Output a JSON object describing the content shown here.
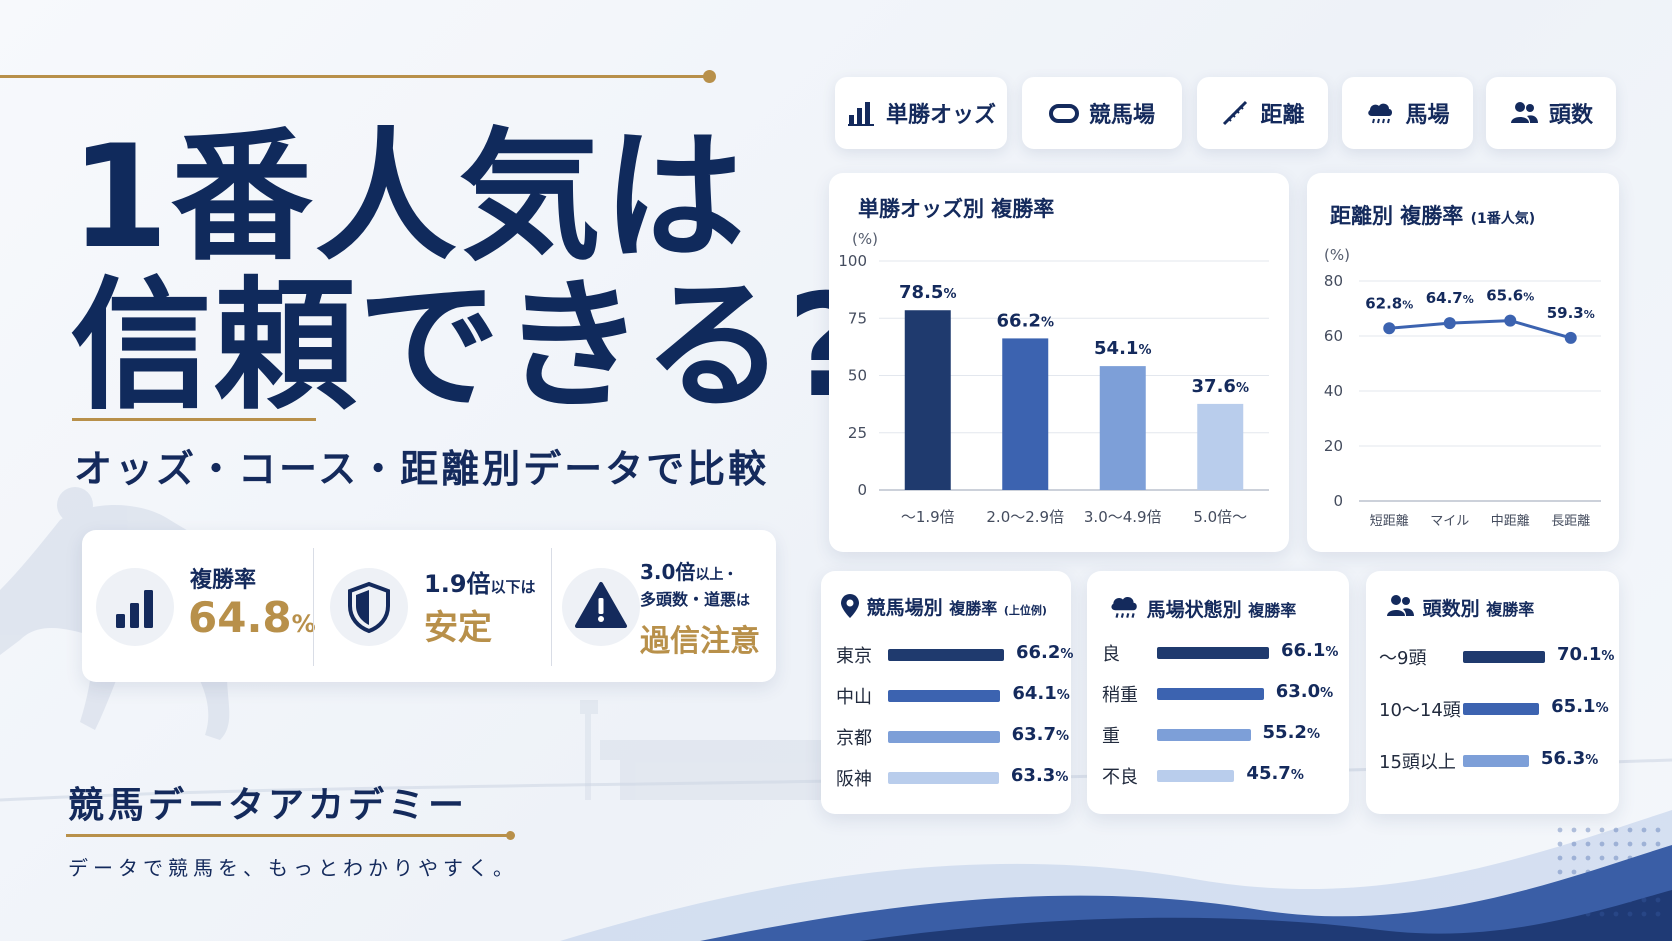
{
  "headline": {
    "line1": "1番人気は",
    "line2": "信頼できる?"
  },
  "subheadline": "オッズ・コース・距離別データで比較",
  "stats": [
    {
      "label": "複勝率",
      "value": "64.8",
      "unit": "%",
      "icon": "bar-chart-icon"
    },
    {
      "label_main": "1.9倍",
      "label_small": "以下は",
      "value": "安定",
      "icon": "shield-icon"
    },
    {
      "label_main": "3.0倍",
      "label_small": "以上・",
      "label2_main": "多頭数・道悪",
      "label2_small": "は",
      "value": "過信注意",
      "icon": "warning-icon"
    }
  ],
  "brand": {
    "name": "競馬データアカデミー",
    "tagline": "データで競馬を、もっとわかりやすく。"
  },
  "tabs": [
    {
      "label": "単勝オッズ",
      "icon": "bar-chart-icon"
    },
    {
      "label": "競馬場",
      "icon": "racetrack-icon"
    },
    {
      "label": "距離",
      "icon": "ruler-icon"
    },
    {
      "label": "馬場",
      "icon": "rain-cloud-icon"
    },
    {
      "label": "頭数",
      "icon": "people-icon"
    }
  ],
  "colors": {
    "navy": "#142a5c",
    "gold": "#b8904a",
    "blue1": "#1f3a6e",
    "blue2": "#3c63b0",
    "blue3": "#7d9fd8",
    "blue4": "#b9cdec"
  },
  "chart_data": [
    {
      "type": "bar",
      "title": "単勝オッズ別 複勝率",
      "ylabel": "(%)",
      "ylim": [
        0,
        100
      ],
      "yticks": [
        0,
        25,
        50,
        75,
        100
      ],
      "categories": [
        "〜1.9倍",
        "2.0〜2.9倍",
        "3.0〜4.9倍",
        "5.0倍〜"
      ],
      "values": [
        78.5,
        66.2,
        54.1,
        37.6
      ],
      "value_labels": [
        "78.5",
        "66.2",
        "54.1",
        "37.6"
      ],
      "value_unit": "%",
      "grid": true
    },
    {
      "type": "line",
      "title": "距離別 複勝率",
      "subtitle": "(1番人気)",
      "ylabel": "(%)",
      "ylim": [
        0,
        80
      ],
      "yticks": [
        0,
        20,
        40,
        60,
        80
      ],
      "categories": [
        "短距離",
        "マイル",
        "中距離",
        "長距離"
      ],
      "values": [
        62.8,
        64.7,
        65.6,
        59.3
      ],
      "value_labels": [
        "62.8",
        "64.7",
        "65.6",
        "59.3"
      ],
      "value_unit": "%",
      "grid": true
    },
    {
      "type": "bar",
      "title": "競馬場別",
      "subtitle": "複勝率",
      "note": "(上位例)",
      "categories": [
        "東京",
        "中山",
        "京都",
        "阪神"
      ],
      "values": [
        66.2,
        64.1,
        63.7,
        63.3
      ],
      "value_labels": [
        "66.2",
        "64.1",
        "63.7",
        "63.3"
      ],
      "value_unit": "%"
    },
    {
      "type": "bar",
      "title": "馬場状態別",
      "subtitle": "複勝率",
      "categories": [
        "良",
        "稍重",
        "重",
        "不良"
      ],
      "values": [
        66.1,
        63.0,
        55.2,
        45.7
      ],
      "value_labels": [
        "66.1",
        "63.0",
        "55.2",
        "45.7"
      ],
      "value_unit": "%"
    },
    {
      "type": "bar",
      "title": "頭数別",
      "subtitle": "複勝率",
      "categories": [
        "〜9頭",
        "10〜14頭",
        "15頭以上"
      ],
      "values": [
        70.1,
        65.1,
        56.3
      ],
      "value_labels": [
        "70.1",
        "65.1",
        "56.3"
      ],
      "value_unit": "%"
    }
  ]
}
